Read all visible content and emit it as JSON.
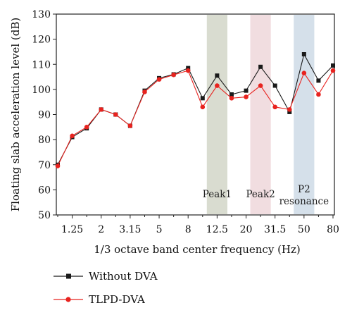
{
  "chart_data": {
    "type": "line",
    "xlabel": "1/3 octave band center frequency (Hz)",
    "ylabel": "Floating slab acceleration level (dB)",
    "ylim": [
      50,
      130
    ],
    "yticks": [
      50,
      60,
      70,
      80,
      90,
      100,
      110,
      120,
      130
    ],
    "x": [
      "1",
      "1.25",
      "1.6",
      "2",
      "2.5",
      "3.15",
      "4",
      "5",
      "6.3",
      "8",
      "10",
      "12.5",
      "16",
      "20",
      "25",
      "31.5",
      "40",
      "50",
      "63",
      "80"
    ],
    "xtick_labels": [
      "1.25",
      "2",
      "3.15",
      "5",
      "8",
      "12.5",
      "20",
      "31.5",
      "50",
      "80"
    ],
    "grid": false,
    "legend_position": "bottom-left, below plot",
    "series": [
      {
        "name": "Without DVA",
        "color": "#1a1a1a",
        "marker": "square",
        "values": [
          70,
          81,
          84.5,
          92,
          90,
          85.5,
          99.5,
          104.5,
          106,
          108.5,
          96.5,
          105.5,
          98,
          99.5,
          109,
          101.5,
          91,
          114,
          103.5,
          109.5
        ]
      },
      {
        "name": "TLPD-DVA",
        "color": "#e8231f",
        "marker": "circle",
        "values": [
          69.5,
          81.5,
          85,
          92,
          90,
          85.5,
          99,
          104,
          105.8,
          107.5,
          93,
          101.5,
          96.5,
          97,
          101.5,
          93,
          92,
          106.5,
          98,
          107.5
        ]
      }
    ],
    "bands": [
      {
        "label": "Peak1",
        "from": "10",
        "to": "16",
        "color": "#d9dcd0"
      },
      {
        "label": "Peak2",
        "from": "20",
        "to": "31.5",
        "color": "#f1dde0"
      },
      {
        "label": "P2 resonance",
        "from": "40",
        "to": "63",
        "color": "#d5e0ea"
      }
    ]
  }
}
